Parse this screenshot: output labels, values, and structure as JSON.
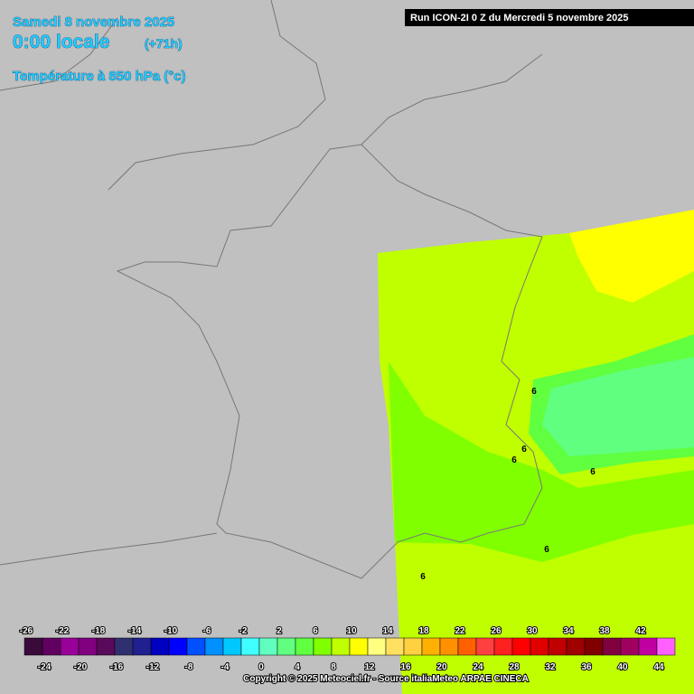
{
  "header": {
    "date": "Samedi 8 novembre 2025",
    "time": "0:00 locale",
    "lead": "(+71h)",
    "field": "Température à 850 hPa (°c)",
    "run": "Run ICON-2I 0 Z du Mercredi 5 novembre 2025"
  },
  "contour_labels": [
    "6",
    "6",
    "6",
    "6",
    "6",
    "6"
  ],
  "legend": {
    "ticks": [
      -26,
      -24,
      -22,
      -20,
      -18,
      -16,
      -14,
      -12,
      -10,
      -8,
      -6,
      -4,
      -2,
      0,
      2,
      4,
      6,
      8,
      10,
      12,
      14,
      16,
      18,
      20,
      22,
      24,
      26,
      28,
      30,
      32,
      34,
      36,
      38,
      40,
      42,
      44
    ],
    "colors": [
      "#3a0a3a",
      "#600060",
      "#990099",
      "#800080",
      "#5a0a5a",
      "#303070",
      "#202090",
      "#0000c0",
      "#0000ff",
      "#0050ff",
      "#0090ff",
      "#00c8ff",
      "#40ffff",
      "#60ffc0",
      "#60ff80",
      "#60ff40",
      "#80ff00",
      "#c0ff00",
      "#ffff00",
      "#ffff80",
      "#ffe060",
      "#ffd040",
      "#ffb000",
      "#ff9000",
      "#ff6000",
      "#ff4040",
      "#ff2020",
      "#ff0000",
      "#e00000",
      "#c00000",
      "#a00000",
      "#800000",
      "#800040",
      "#a00060",
      "#c000a0",
      "#ff60ff"
    ]
  },
  "footer": {
    "copyright": "Copyright © 2025 Meteociel.fr - Source italiaMeteo ARPAE CINECA"
  }
}
